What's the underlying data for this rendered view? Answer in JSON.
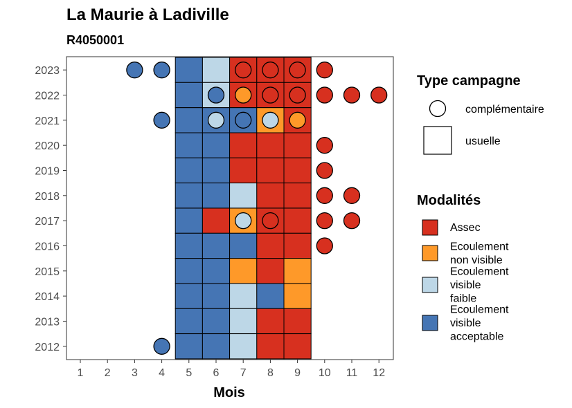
{
  "chart_data": {
    "type": "heatmap",
    "title": "La Maurie à Ladiville",
    "subtitle": "R4050001",
    "xlabel": "Mois",
    "ylabel": "",
    "x_ticks": [
      "1",
      "2",
      "3",
      "4",
      "5",
      "6",
      "7",
      "8",
      "9",
      "10",
      "11",
      "12"
    ],
    "y_ticks": [
      "2023",
      "2022",
      "2021",
      "2020",
      "2019",
      "2018",
      "2017",
      "2016",
      "2015",
      "2014",
      "2013",
      "2012"
    ],
    "grid": false,
    "modalites": {
      "assec": {
        "label": "Assec",
        "color": "#d7301f"
      },
      "non_visible": {
        "label": "Ecoulement non visible",
        "color": "#fe9929"
      },
      "faible": {
        "label": "Ecoulement visible faible",
        "color": "#bdd7e7"
      },
      "acceptable": {
        "label": "Ecoulement visible acceptable",
        "color": "#4575b4"
      }
    },
    "modalites_title": "Modalités",
    "modalites_order": [
      "assec",
      "non_visible",
      "faible",
      "acceptable"
    ],
    "modalites_lines": {
      "assec": [
        "Assec"
      ],
      "non_visible": [
        "Ecoulement",
        "non visible"
      ],
      "faible": [
        "Ecoulement",
        "visible",
        "faible"
      ],
      "acceptable": [
        "Ecoulement",
        "visible",
        "acceptable"
      ]
    },
    "type_campagne_title": "Type campagne",
    "type_campagne": [
      {
        "key": "complementaire",
        "label": "complémentaire",
        "shape": "circle"
      },
      {
        "key": "usuelle",
        "label": "usuelle",
        "shape": "square"
      }
    ],
    "usuelle": [
      {
        "year": 2023,
        "month": 5,
        "mod": "acceptable"
      },
      {
        "year": 2023,
        "month": 6,
        "mod": "faible"
      },
      {
        "year": 2023,
        "month": 7,
        "mod": "assec"
      },
      {
        "year": 2023,
        "month": 8,
        "mod": "assec"
      },
      {
        "year": 2023,
        "month": 9,
        "mod": "assec"
      },
      {
        "year": 2022,
        "month": 5,
        "mod": "acceptable"
      },
      {
        "year": 2022,
        "month": 6,
        "mod": "faible"
      },
      {
        "year": 2022,
        "month": 7,
        "mod": "assec"
      },
      {
        "year": 2022,
        "month": 8,
        "mod": "assec"
      },
      {
        "year": 2022,
        "month": 9,
        "mod": "assec"
      },
      {
        "year": 2021,
        "month": 5,
        "mod": "acceptable"
      },
      {
        "year": 2021,
        "month": 6,
        "mod": "acceptable"
      },
      {
        "year": 2021,
        "month": 7,
        "mod": "acceptable"
      },
      {
        "year": 2021,
        "month": 8,
        "mod": "non_visible"
      },
      {
        "year": 2021,
        "month": 9,
        "mod": "assec"
      },
      {
        "year": 2020,
        "month": 5,
        "mod": "acceptable"
      },
      {
        "year": 2020,
        "month": 6,
        "mod": "acceptable"
      },
      {
        "year": 2020,
        "month": 7,
        "mod": "assec"
      },
      {
        "year": 2020,
        "month": 8,
        "mod": "assec"
      },
      {
        "year": 2020,
        "month": 9,
        "mod": "assec"
      },
      {
        "year": 2019,
        "month": 5,
        "mod": "acceptable"
      },
      {
        "year": 2019,
        "month": 6,
        "mod": "acceptable"
      },
      {
        "year": 2019,
        "month": 7,
        "mod": "assec"
      },
      {
        "year": 2019,
        "month": 8,
        "mod": "assec"
      },
      {
        "year": 2019,
        "month": 9,
        "mod": "assec"
      },
      {
        "year": 2018,
        "month": 5,
        "mod": "acceptable"
      },
      {
        "year": 2018,
        "month": 6,
        "mod": "acceptable"
      },
      {
        "year": 2018,
        "month": 7,
        "mod": "faible"
      },
      {
        "year": 2018,
        "month": 8,
        "mod": "assec"
      },
      {
        "year": 2018,
        "month": 9,
        "mod": "assec"
      },
      {
        "year": 2017,
        "month": 5,
        "mod": "acceptable"
      },
      {
        "year": 2017,
        "month": 6,
        "mod": "assec"
      },
      {
        "year": 2017,
        "month": 7,
        "mod": "non_visible"
      },
      {
        "year": 2017,
        "month": 8,
        "mod": "assec"
      },
      {
        "year": 2017,
        "month": 9,
        "mod": "assec"
      },
      {
        "year": 2016,
        "month": 5,
        "mod": "acceptable"
      },
      {
        "year": 2016,
        "month": 6,
        "mod": "acceptable"
      },
      {
        "year": 2016,
        "month": 7,
        "mod": "acceptable"
      },
      {
        "year": 2016,
        "month": 8,
        "mod": "assec"
      },
      {
        "year": 2016,
        "month": 9,
        "mod": "assec"
      },
      {
        "year": 2015,
        "month": 5,
        "mod": "acceptable"
      },
      {
        "year": 2015,
        "month": 6,
        "mod": "acceptable"
      },
      {
        "year": 2015,
        "month": 7,
        "mod": "non_visible"
      },
      {
        "year": 2015,
        "month": 8,
        "mod": "assec"
      },
      {
        "year": 2015,
        "month": 9,
        "mod": "non_visible"
      },
      {
        "year": 2014,
        "month": 5,
        "mod": "acceptable"
      },
      {
        "year": 2014,
        "month": 6,
        "mod": "acceptable"
      },
      {
        "year": 2014,
        "month": 7,
        "mod": "faible"
      },
      {
        "year": 2014,
        "month": 8,
        "mod": "acceptable"
      },
      {
        "year": 2014,
        "month": 9,
        "mod": "non_visible"
      },
      {
        "year": 2013,
        "month": 5,
        "mod": "acceptable"
      },
      {
        "year": 2013,
        "month": 6,
        "mod": "acceptable"
      },
      {
        "year": 2013,
        "month": 7,
        "mod": "faible"
      },
      {
        "year": 2013,
        "month": 8,
        "mod": "assec"
      },
      {
        "year": 2013,
        "month": 9,
        "mod": "assec"
      },
      {
        "year": 2012,
        "month": 5,
        "mod": "acceptable"
      },
      {
        "year": 2012,
        "month": 6,
        "mod": "acceptable"
      },
      {
        "year": 2012,
        "month": 7,
        "mod": "faible"
      },
      {
        "year": 2012,
        "month": 8,
        "mod": "assec"
      },
      {
        "year": 2012,
        "month": 9,
        "mod": "assec"
      }
    ],
    "complementaire": [
      {
        "year": 2023,
        "month": 3,
        "mod": "acceptable"
      },
      {
        "year": 2023,
        "month": 4,
        "mod": "acceptable"
      },
      {
        "year": 2023,
        "month": 7,
        "mod": "assec"
      },
      {
        "year": 2023,
        "month": 8,
        "mod": "assec"
      },
      {
        "year": 2023,
        "month": 9,
        "mod": "assec"
      },
      {
        "year": 2023,
        "month": 10,
        "mod": "assec"
      },
      {
        "year": 2022,
        "month": 6,
        "mod": "acceptable"
      },
      {
        "year": 2022,
        "month": 7,
        "mod": "non_visible"
      },
      {
        "year": 2022,
        "month": 8,
        "mod": "assec"
      },
      {
        "year": 2022,
        "month": 9,
        "mod": "assec"
      },
      {
        "year": 2022,
        "month": 10,
        "mod": "assec"
      },
      {
        "year": 2022,
        "month": 11,
        "mod": "assec"
      },
      {
        "year": 2022,
        "month": 12,
        "mod": "assec"
      },
      {
        "year": 2021,
        "month": 4,
        "mod": "acceptable"
      },
      {
        "year": 2021,
        "month": 6,
        "mod": "faible"
      },
      {
        "year": 2021,
        "month": 7,
        "mod": "acceptable"
      },
      {
        "year": 2021,
        "month": 8,
        "mod": "faible"
      },
      {
        "year": 2021,
        "month": 9,
        "mod": "non_visible"
      },
      {
        "year": 2020,
        "month": 10,
        "mod": "assec"
      },
      {
        "year": 2019,
        "month": 10,
        "mod": "assec"
      },
      {
        "year": 2018,
        "month": 10,
        "mod": "assec"
      },
      {
        "year": 2018,
        "month": 11,
        "mod": "assec"
      },
      {
        "year": 2017,
        "month": 7,
        "mod": "faible"
      },
      {
        "year": 2017,
        "month": 8,
        "mod": "assec"
      },
      {
        "year": 2017,
        "month": 10,
        "mod": "assec"
      },
      {
        "year": 2017,
        "month": 11,
        "mod": "assec"
      },
      {
        "year": 2016,
        "month": 10,
        "mod": "assec"
      },
      {
        "year": 2012,
        "month": 4,
        "mod": "acceptable"
      }
    ]
  }
}
